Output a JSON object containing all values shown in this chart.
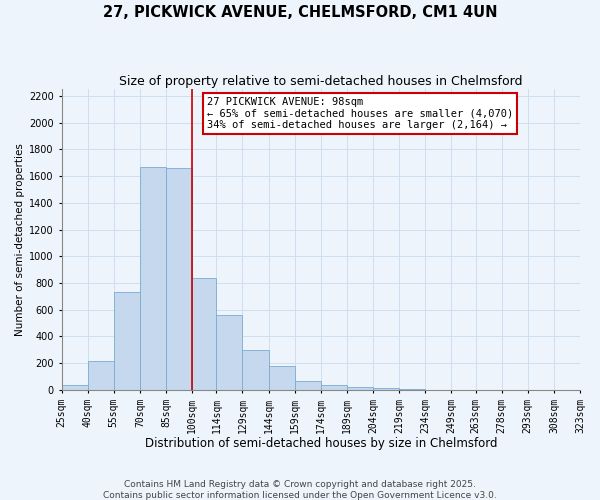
{
  "title": "27, PICKWICK AVENUE, CHELMSFORD, CM1 4UN",
  "subtitle": "Size of property relative to semi-detached houses in Chelmsford",
  "xlabel": "Distribution of semi-detached houses by size in Chelmsford",
  "ylabel": "Number of semi-detached properties",
  "bar_edges": [
    25,
    40,
    55,
    70,
    85,
    100,
    114,
    129,
    144,
    159,
    174,
    189,
    204,
    219,
    234,
    249,
    263,
    278,
    293,
    308,
    323
  ],
  "bar_heights": [
    40,
    220,
    730,
    1670,
    1660,
    840,
    560,
    300,
    180,
    70,
    35,
    20,
    12,
    5,
    2,
    1,
    0,
    0,
    0,
    0
  ],
  "bar_color": "#c5d8ee",
  "bar_edgecolor": "#7aabcf",
  "grid_color": "#ccdff0",
  "background_color": "#eef4fb",
  "vline_x": 100,
  "vline_color": "#cc0000",
  "annotation_title": "27 PICKWICK AVENUE: 98sqm",
  "annotation_line1": "← 65% of semi-detached houses are smaller (4,070)",
  "annotation_line2": "34% of semi-detached houses are larger (2,164) →",
  "annotation_box_color": "#ffffff",
  "annotation_box_edgecolor": "#cc0000",
  "ylim": [
    0,
    2250
  ],
  "yticks": [
    0,
    200,
    400,
    600,
    800,
    1000,
    1200,
    1400,
    1600,
    1800,
    2000,
    2200
  ],
  "xtick_labels": [
    "25sqm",
    "40sqm",
    "55sqm",
    "70sqm",
    "85sqm",
    "100sqm",
    "114sqm",
    "129sqm",
    "144sqm",
    "159sqm",
    "174sqm",
    "189sqm",
    "204sqm",
    "219sqm",
    "234sqm",
    "249sqm",
    "263sqm",
    "278sqm",
    "293sqm",
    "308sqm",
    "323sqm"
  ],
  "footer1": "Contains HM Land Registry data © Crown copyright and database right 2025.",
  "footer2": "Contains public sector information licensed under the Open Government Licence v3.0.",
  "title_fontsize": 10.5,
  "subtitle_fontsize": 9,
  "xlabel_fontsize": 8.5,
  "ylabel_fontsize": 7.5,
  "tick_fontsize": 7,
  "footer_fontsize": 6.5,
  "annotation_fontsize": 7.5
}
